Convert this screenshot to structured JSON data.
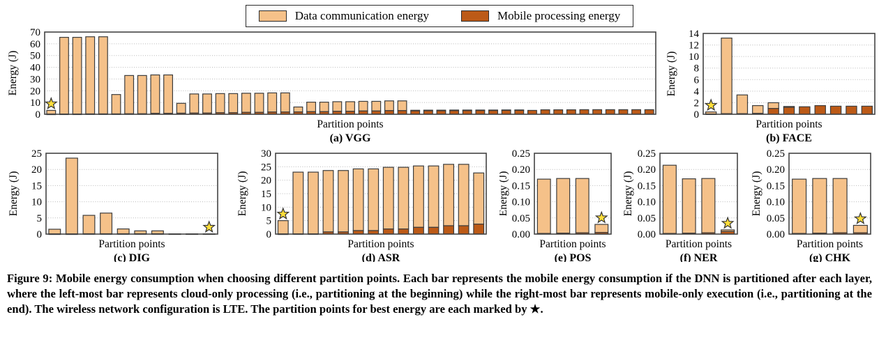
{
  "figure_caption": "Figure 9: Mobile energy consumption when choosing different partition points. Each bar represents the mobile energy consumption if the DNN is partitioned after each layer, where the left-most bar represents cloud-only processing (i.e., partitioning at the beginning) while the right-most bar represents mobile-only execution (i.e., partitioning at the end). The wireless network configuration is LTE. The partition points for best energy are each marked by ★.",
  "legend": {
    "items": [
      {
        "label": "Data communication energy",
        "color": "#F5C189"
      },
      {
        "label": "Mobile processing energy",
        "color": "#BC5A17"
      }
    ]
  },
  "colors": {
    "communication": "#F5C189",
    "processing": "#BC5A17",
    "bar_stroke": "#3d3d3d",
    "grid": "#b8b8b8",
    "spine": "#444444",
    "star_fill": "#FFDE3A",
    "star_stroke": "#333333"
  },
  "chart_data": [
    {
      "id": "vgg",
      "type": "bar",
      "stacked": true,
      "caption": "(a) VGG",
      "xlabel": "Partition points",
      "ylabel": "Energy (J)",
      "ylim": [
        0,
        70
      ],
      "yticks": [
        0,
        10,
        20,
        30,
        40,
        50,
        60,
        70
      ],
      "ydecimals": 0,
      "grid": true,
      "star_index": 0,
      "series": [
        {
          "name": "Mobile processing energy",
          "values": [
            0.15,
            0.2,
            0.2,
            0.3,
            0.3,
            0.3,
            0.4,
            0.4,
            0.8,
            0.8,
            0.9,
            1.0,
            1.0,
            1.3,
            1.3,
            1.6,
            1.6,
            1.9,
            1.9,
            2.0,
            2.2,
            2.2,
            2.5,
            2.5,
            2.8,
            2.8,
            3.1,
            3.1,
            2.9,
            3.0,
            3.0,
            3.1,
            3.1,
            3.2,
            3.2,
            3.3,
            3.3,
            3.3,
            3.8,
            3.8,
            3.8,
            3.9,
            3.9,
            3.9,
            3.9,
            3.9,
            3.9
          ]
        },
        {
          "name": "Data communication energy",
          "values": [
            3.15,
            65.3,
            65.3,
            65.7,
            65.7,
            16.5,
            32.6,
            32.6,
            32.7,
            32.7,
            8.4,
            16.3,
            16.3,
            16.3,
            16.3,
            16.3,
            16.3,
            16.3,
            16.3,
            4.2,
            8.1,
            8.1,
            8.2,
            8.2,
            8.2,
            8.2,
            8.3,
            8.3,
            0.5,
            0.5,
            0.5,
            0.5,
            0.5,
            0.4,
            0.4,
            0.4,
            0.4,
            0.0,
            0.0,
            0.0,
            0.0,
            0.0,
            0.0,
            0.0,
            0.0,
            0.0,
            0.0
          ]
        }
      ]
    },
    {
      "id": "face",
      "type": "bar",
      "stacked": true,
      "caption": "(b) FACE",
      "xlabel": "Partition points",
      "ylabel": "Energy (J)",
      "ylim": [
        0,
        14
      ],
      "yticks": [
        0,
        2,
        4,
        6,
        8,
        10,
        12,
        14
      ],
      "ydecimals": 0,
      "grid": true,
      "star_index": 0,
      "series": [
        {
          "name": "Mobile processing energy",
          "values": [
            0.05,
            0.1,
            0.1,
            0.15,
            1.0,
            1.2,
            1.3,
            1.5,
            1.4,
            1.4,
            1.4
          ]
        },
        {
          "name": "Data communication energy",
          "values": [
            0.35,
            13.1,
            3.25,
            1.35,
            1.0,
            0.15,
            0.0,
            0.0,
            0.0,
            0.0,
            0.0
          ]
        }
      ]
    },
    {
      "id": "dig",
      "type": "bar",
      "stacked": true,
      "caption": "(c) DIG",
      "xlabel": "Partition points",
      "ylabel": "Energy (J)",
      "ylim": [
        0,
        25
      ],
      "yticks": [
        0,
        5,
        10,
        15,
        20,
        25
      ],
      "ydecimals": 0,
      "grid": true,
      "star_index": 9,
      "series": [
        {
          "name": "Mobile processing energy",
          "values": [
            0.05,
            0.05,
            0.1,
            0.1,
            0.1,
            0.1,
            0.1,
            0.07,
            0.07,
            0.08
          ]
        },
        {
          "name": "Data communication energy",
          "values": [
            1.45,
            23.45,
            5.7,
            6.4,
            1.5,
            0.9,
            0.9,
            0.0,
            0.0,
            0.0
          ]
        }
      ]
    },
    {
      "id": "asr",
      "type": "bar",
      "stacked": true,
      "caption": "(d) ASR",
      "xlabel": "Partition points",
      "ylabel": "Energy (J)",
      "ylim": [
        0,
        30
      ],
      "yticks": [
        0,
        5,
        10,
        15,
        20,
        25,
        30
      ],
      "ydecimals": 0,
      "grid": true,
      "star_index": 0,
      "series": [
        {
          "name": "Mobile processing energy",
          "values": [
            0.05,
            0.1,
            0.1,
            0.8,
            0.8,
            1.3,
            1.3,
            1.9,
            1.9,
            2.5,
            2.5,
            3.1,
            3.1,
            3.7
          ]
        },
        {
          "name": "Data communication energy",
          "values": [
            4.95,
            22.9,
            22.9,
            22.8,
            22.8,
            22.9,
            22.9,
            22.9,
            22.9,
            22.8,
            22.8,
            22.8,
            22.8,
            19.0
          ]
        }
      ]
    },
    {
      "id": "pos",
      "type": "bar",
      "stacked": true,
      "caption": "(e) POS",
      "xlabel": "Partition points",
      "ylabel": "Energy (J)",
      "ylim": [
        0,
        0.25
      ],
      "yticks": [
        0,
        0.05,
        0.1,
        0.15,
        0.2,
        0.25
      ],
      "ydecimals": 2,
      "grid": true,
      "star_index": 3,
      "series": [
        {
          "name": "Mobile processing energy",
          "values": [
            0.002,
            0.003,
            0.004,
            0.005
          ]
        },
        {
          "name": "Data communication energy",
          "values": [
            0.168,
            0.169,
            0.168,
            0.025
          ]
        }
      ]
    },
    {
      "id": "ner",
      "type": "bar",
      "stacked": true,
      "caption": "(f) NER",
      "xlabel": "Partition points",
      "ylabel": "Energy (J)",
      "ylim": [
        0,
        0.25
      ],
      "yticks": [
        0,
        0.05,
        0.1,
        0.15,
        0.2,
        0.25
      ],
      "ydecimals": 2,
      "grid": true,
      "star_index": 3,
      "series": [
        {
          "name": "Mobile processing energy",
          "values": [
            0.002,
            0.003,
            0.004,
            0.008
          ]
        },
        {
          "name": "Data communication energy",
          "values": [
            0.211,
            0.168,
            0.168,
            0.005
          ]
        }
      ]
    },
    {
      "id": "chk",
      "type": "bar",
      "stacked": true,
      "caption": "(g) CHK",
      "xlabel": "Partition points",
      "ylabel": "Energy (J)",
      "ylim": [
        0,
        0.25
      ],
      "yticks": [
        0,
        0.05,
        0.1,
        0.15,
        0.2,
        0.25
      ],
      "ydecimals": 2,
      "grid": true,
      "star_index": 3,
      "series": [
        {
          "name": "Mobile processing energy",
          "values": [
            0.002,
            0.003,
            0.004,
            0.004
          ]
        },
        {
          "name": "Data communication energy",
          "values": [
            0.168,
            0.169,
            0.168,
            0.023
          ]
        }
      ]
    }
  ]
}
